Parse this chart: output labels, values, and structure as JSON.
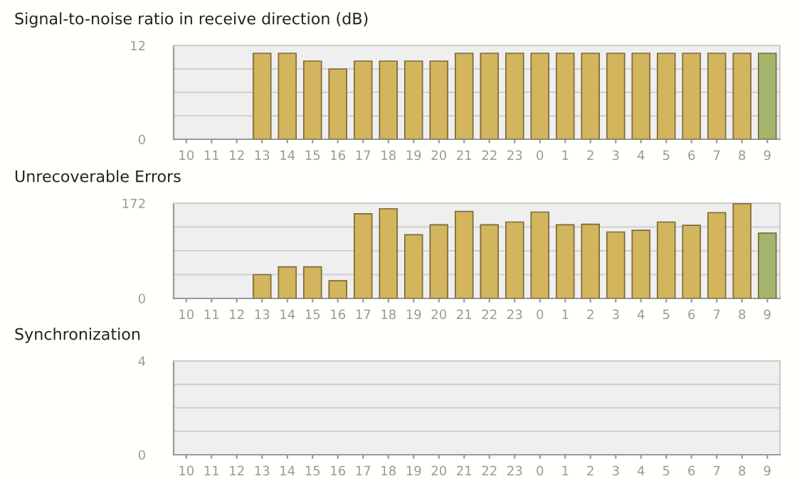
{
  "chart_data": [
    {
      "type": "bar",
      "title": "Signal-to-noise ratio in receive direction (dB)",
      "categories": [
        "10",
        "11",
        "12",
        "13",
        "14",
        "15",
        "16",
        "17",
        "18",
        "19",
        "20",
        "21",
        "22",
        "23",
        "0",
        "1",
        "2",
        "3",
        "4",
        "5",
        "6",
        "7",
        "8",
        "9"
      ],
      "values": [
        null,
        null,
        null,
        11,
        11,
        10,
        9,
        10,
        10,
        10,
        10,
        11,
        11,
        11,
        11,
        11,
        11,
        11,
        11,
        11,
        11,
        11,
        11,
        11
      ],
      "colors": [
        "#d2b55c",
        "#d2b55c",
        "#d2b55c",
        "#d2b55c",
        "#d2b55c",
        "#d2b55c",
        "#d2b55c",
        "#d2b55c",
        "#d2b55c",
        "#d2b55c",
        "#d2b55c",
        "#d2b55c",
        "#d2b55c",
        "#d2b55c",
        "#d2b55c",
        "#d2b55c",
        "#d2b55c",
        "#d2b55c",
        "#d2b55c",
        "#d2b55c",
        "#d2b55c",
        "#d2b55c",
        "#d2b55c",
        "#a4b56c"
      ],
      "ylim": [
        0,
        12
      ],
      "yticks": [
        0,
        {
          "value": 3,
          "label": null
        },
        {
          "value": 6,
          "label": null
        },
        {
          "value": 9,
          "label": null
        },
        12
      ],
      "grid": "y"
    },
    {
      "type": "bar",
      "title": "Unrecoverable Errors",
      "categories": [
        "10",
        "11",
        "12",
        "13",
        "14",
        "15",
        "16",
        "17",
        "18",
        "19",
        "20",
        "21",
        "22",
        "23",
        "0",
        "1",
        "2",
        "3",
        "4",
        "5",
        "6",
        "7",
        "8",
        "9"
      ],
      "values": [
        null,
        null,
        null,
        43,
        57,
        57,
        32,
        153,
        162,
        115,
        133,
        157,
        133,
        138,
        156,
        133,
        134,
        120,
        123,
        138,
        132,
        155,
        171,
        118
      ],
      "colors": [
        "#d2b55c",
        "#d2b55c",
        "#d2b55c",
        "#d2b55c",
        "#d2b55c",
        "#d2b55c",
        "#d2b55c",
        "#d2b55c",
        "#d2b55c",
        "#d2b55c",
        "#d2b55c",
        "#d2b55c",
        "#d2b55c",
        "#d2b55c",
        "#d2b55c",
        "#d2b55c",
        "#d2b55c",
        "#d2b55c",
        "#d2b55c",
        "#d2b55c",
        "#d2b55c",
        "#d2b55c",
        "#d2b55c",
        "#a4b56c"
      ],
      "ylim": [
        0,
        172
      ],
      "yticks": [
        0,
        {
          "value": 43,
          "label": null
        },
        {
          "value": 86,
          "label": null
        },
        {
          "value": 129,
          "label": null
        },
        172
      ],
      "grid": "y"
    },
    {
      "type": "bar",
      "title": "Synchronization",
      "categories": [
        "10",
        "11",
        "12",
        "13",
        "14",
        "15",
        "16",
        "17",
        "18",
        "19",
        "20",
        "21",
        "22",
        "23",
        "0",
        "1",
        "2",
        "3",
        "4",
        "5",
        "6",
        "7",
        "8",
        "9"
      ],
      "values": [
        null,
        null,
        null,
        null,
        null,
        null,
        null,
        null,
        null,
        null,
        null,
        null,
        null,
        null,
        null,
        null,
        null,
        null,
        null,
        null,
        null,
        null,
        null,
        null
      ],
      "ylim": [
        0,
        4
      ],
      "yticks": [
        0,
        {
          "value": 1,
          "label": null
        },
        {
          "value": 2,
          "label": null
        },
        {
          "value": 3,
          "label": null
        },
        4
      ],
      "grid": "y"
    }
  ]
}
